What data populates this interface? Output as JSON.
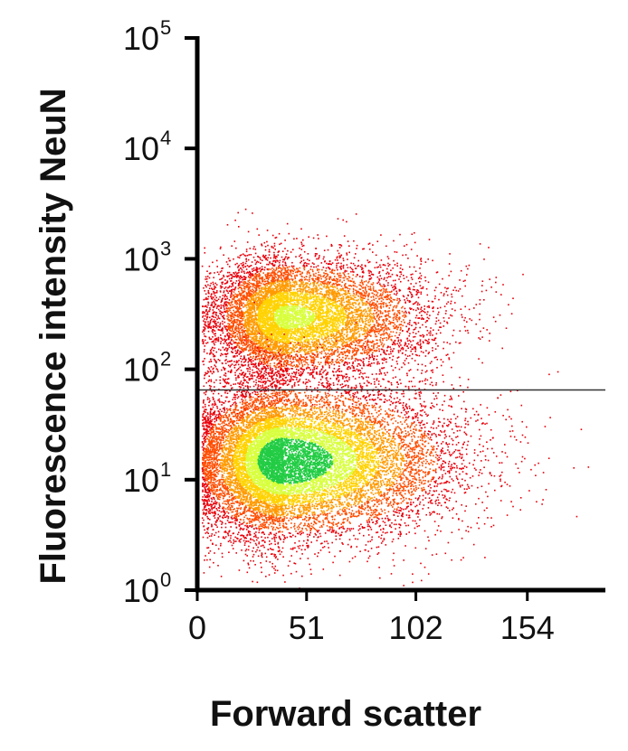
{
  "chart_data": {
    "type": "scatter",
    "title": "",
    "xlabel": "Forward scatter",
    "ylabel": "Fluorescence intensity NeuN",
    "x_ticks": [
      {
        "value": 0,
        "label": "0"
      },
      {
        "value": 51,
        "label": "51"
      },
      {
        "value": 102,
        "label": "102"
      },
      {
        "value": 154,
        "label": "154"
      }
    ],
    "y_scale": "log",
    "y_ticks": [
      {
        "value": 1,
        "base": "10",
        "exp": "0"
      },
      {
        "value": 10,
        "base": "10",
        "exp": "1"
      },
      {
        "value": 100,
        "base": "10",
        "exp": "2"
      },
      {
        "value": 1000,
        "base": "10",
        "exp": "3"
      },
      {
        "value": 10000,
        "base": "10",
        "exp": "4"
      },
      {
        "value": 100000,
        "base": "10",
        "exp": "5"
      }
    ],
    "xlim": [
      0,
      190
    ],
    "ylim": [
      1,
      100000
    ],
    "gate_threshold_y": 65,
    "grid": false,
    "colormap": [
      "#e8000b",
      "#ff4d00",
      "#ff9a00",
      "#ffd200",
      "#d8ff3c",
      "#22cc44"
    ],
    "populations": [
      {
        "center_x": 42,
        "center_y": 300,
        "spread_x": 17,
        "spread_y_log10": 0.27,
        "count": 9000
      },
      {
        "center_x": 40,
        "center_y": 15,
        "spread_x": 20,
        "spread_y_log10": 0.34,
        "count": 14000
      }
    ]
  }
}
